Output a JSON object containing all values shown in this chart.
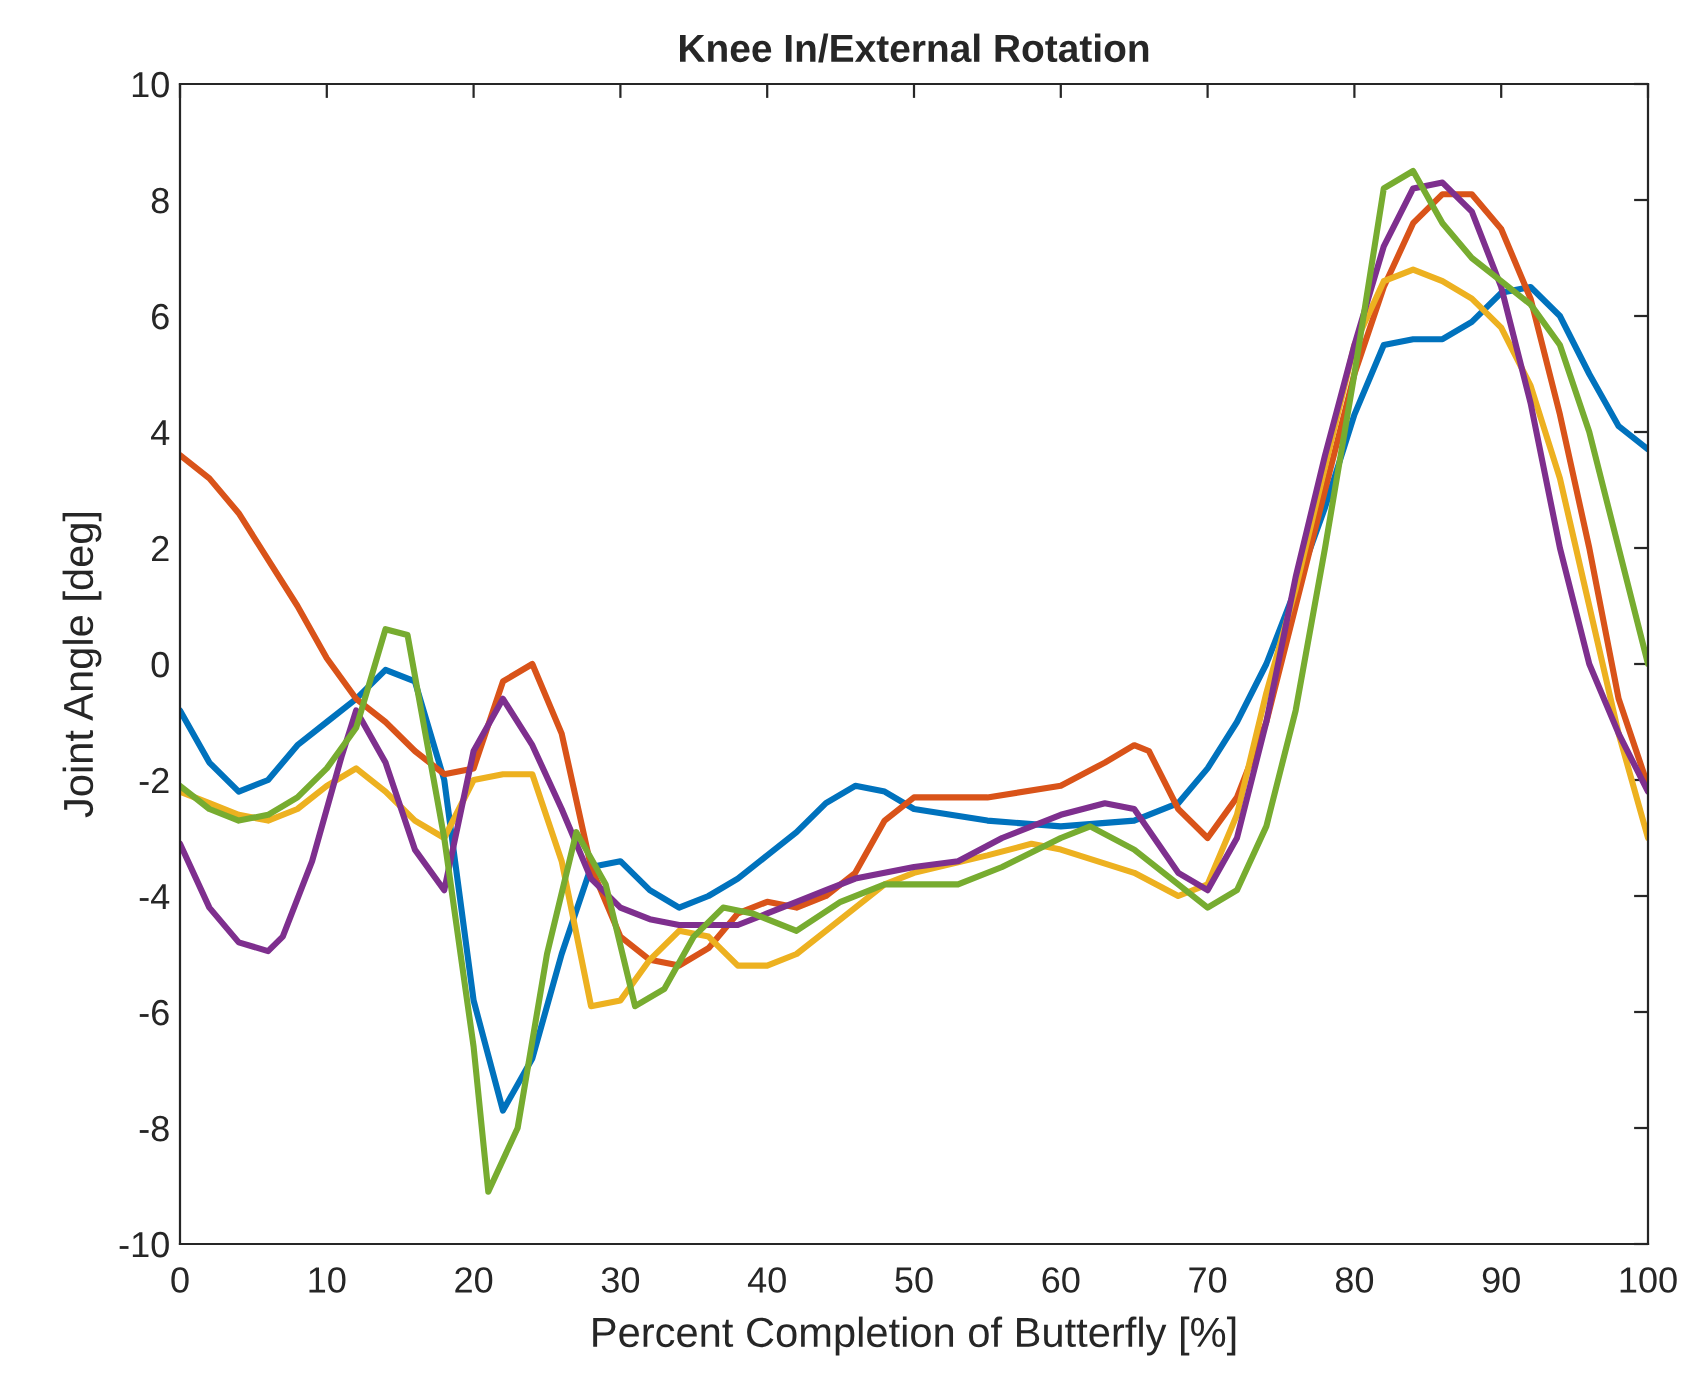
{
  "chart_data": {
    "type": "line",
    "title": "Knee In/External Rotation",
    "xlabel": "Percent Completion of Butterfly [%]",
    "ylabel": "Joint Angle [deg]",
    "xlim": [
      0,
      100
    ],
    "xticks": [
      0,
      10,
      20,
      30,
      40,
      50,
      60,
      70,
      80,
      90,
      100
    ],
    "ylim": [
      -10,
      10
    ],
    "yticks": [
      -10,
      -8,
      -6,
      -4,
      -2,
      0,
      2,
      4,
      6,
      8,
      10
    ],
    "grid": false,
    "marker": "none",
    "line_style": "solid",
    "series": [
      {
        "color": "#0072bd",
        "x": [
          0,
          2,
          4,
          6,
          8,
          10,
          12,
          14,
          16,
          18,
          20,
          22,
          24,
          26,
          28,
          30,
          32,
          34,
          36,
          38,
          40,
          42,
          44,
          46,
          48,
          50,
          55,
          60,
          65,
          68,
          70,
          72,
          74,
          76,
          78,
          80,
          82,
          84,
          86,
          88,
          90,
          92,
          94,
          96,
          98,
          100
        ],
        "values": [
          -0.8,
          -1.7,
          -2.2,
          -2.0,
          -1.4,
          -1.0,
          -0.6,
          -0.1,
          -0.3,
          -2.0,
          -5.8,
          -7.7,
          -6.8,
          -5.0,
          -3.5,
          -3.4,
          -3.9,
          -4.2,
          -4.0,
          -3.7,
          -3.3,
          -2.9,
          -2.4,
          -2.1,
          -2.2,
          -2.5,
          -2.7,
          -2.8,
          -2.7,
          -2.4,
          -1.8,
          -1.0,
          0.0,
          1.3,
          2.7,
          4.3,
          5.5,
          5.6,
          5.6,
          5.9,
          6.4,
          6.5,
          6.0,
          5.0,
          4.1,
          3.7
        ]
      },
      {
        "color": "#d95319",
        "x": [
          0,
          2,
          4,
          6,
          8,
          10,
          12,
          14,
          16,
          18,
          20,
          22,
          24,
          26,
          28,
          30,
          32,
          34,
          36,
          38,
          40,
          42,
          44,
          46,
          48,
          50,
          55,
          60,
          63,
          65,
          66,
          68,
          70,
          72,
          74,
          76,
          78,
          80,
          82,
          84,
          86,
          88,
          90,
          92,
          94,
          96,
          98,
          100
        ],
        "values": [
          3.6,
          3.2,
          2.6,
          1.8,
          1.0,
          0.1,
          -0.6,
          -1.0,
          -1.5,
          -1.9,
          -1.8,
          -0.3,
          0.0,
          -1.2,
          -3.5,
          -4.7,
          -5.1,
          -5.2,
          -4.9,
          -4.3,
          -4.1,
          -4.2,
          -4.0,
          -3.6,
          -2.7,
          -2.3,
          -2.3,
          -2.1,
          -1.7,
          -1.4,
          -1.5,
          -2.5,
          -3.0,
          -2.3,
          -1.0,
          1.0,
          3.0,
          5.0,
          6.5,
          7.6,
          8.1,
          8.1,
          7.5,
          6.3,
          4.3,
          2.0,
          -0.6,
          -2.1
        ]
      },
      {
        "color": "#edb120",
        "x": [
          0,
          2,
          4,
          6,
          8,
          10,
          12,
          14,
          16,
          18,
          20,
          22,
          24,
          26,
          28,
          30,
          32,
          34,
          36,
          38,
          40,
          42,
          44,
          46,
          48,
          50,
          55,
          58,
          60,
          65,
          68,
          70,
          72,
          74,
          76,
          78,
          80,
          82,
          84,
          86,
          88,
          90,
          92,
          94,
          96,
          98,
          100
        ],
        "values": [
          -2.2,
          -2.4,
          -2.6,
          -2.7,
          -2.5,
          -2.1,
          -1.8,
          -2.2,
          -2.7,
          -3.0,
          -2.0,
          -1.9,
          -1.9,
          -3.4,
          -5.9,
          -5.8,
          -5.1,
          -4.6,
          -4.7,
          -5.2,
          -5.2,
          -5.0,
          -4.6,
          -4.2,
          -3.8,
          -3.6,
          -3.3,
          -3.1,
          -3.2,
          -3.6,
          -4.0,
          -3.8,
          -2.6,
          -0.5,
          1.3,
          3.4,
          5.5,
          6.6,
          6.8,
          6.6,
          6.3,
          5.8,
          4.8,
          3.2,
          1.0,
          -1.2,
          -3.0
        ]
      },
      {
        "color": "#7e2f8e",
        "x": [
          0,
          2,
          4,
          6,
          7,
          9,
          11,
          12,
          14,
          16,
          18,
          20,
          22,
          24,
          26,
          28,
          30,
          32,
          34,
          36,
          38,
          40,
          42,
          44,
          46,
          48,
          50,
          53,
          56,
          60,
          63,
          65,
          68,
          70,
          72,
          74,
          76,
          78,
          80,
          82,
          84,
          86,
          88,
          90,
          92,
          94,
          96,
          98,
          100
        ],
        "values": [
          -3.1,
          -4.2,
          -4.8,
          -4.95,
          -4.7,
          -3.4,
          -1.6,
          -0.8,
          -1.7,
          -3.2,
          -3.9,
          -1.5,
          -0.6,
          -1.4,
          -2.5,
          -3.7,
          -4.2,
          -4.4,
          -4.5,
          -4.5,
          -4.5,
          -4.3,
          -4.1,
          -3.9,
          -3.7,
          -3.6,
          -3.5,
          -3.4,
          -3.0,
          -2.6,
          -2.4,
          -2.5,
          -3.6,
          -3.9,
          -3.0,
          -1.0,
          1.5,
          3.6,
          5.5,
          7.2,
          8.2,
          8.3,
          7.8,
          6.5,
          4.5,
          2.0,
          0.0,
          -1.2,
          -2.2
        ]
      },
      {
        "color": "#77ac30",
        "x": [
          0,
          2,
          4,
          6,
          8,
          10,
          12,
          14,
          15.5,
          18,
          20,
          21,
          23,
          25,
          27,
          29,
          31,
          33,
          35,
          37,
          39,
          42,
          45,
          48,
          50,
          53,
          56,
          60,
          62,
          65,
          68,
          70,
          72,
          74,
          76,
          78,
          80,
          82,
          84,
          86,
          88,
          90,
          92,
          94,
          96,
          98,
          100
        ],
        "values": [
          -2.1,
          -2.5,
          -2.7,
          -2.6,
          -2.3,
          -1.8,
          -1.1,
          0.6,
          0.5,
          -3.0,
          -6.6,
          -9.1,
          -8.0,
          -5.0,
          -2.9,
          -3.8,
          -5.9,
          -5.6,
          -4.7,
          -4.2,
          -4.3,
          -4.6,
          -4.1,
          -3.8,
          -3.8,
          -3.8,
          -3.5,
          -3.0,
          -2.8,
          -3.2,
          -3.8,
          -4.2,
          -3.9,
          -2.8,
          -0.8,
          2.0,
          5.0,
          8.2,
          8.5,
          7.6,
          7.0,
          6.6,
          6.2,
          5.5,
          4.0,
          2.0,
          0.0
        ]
      }
    ]
  }
}
